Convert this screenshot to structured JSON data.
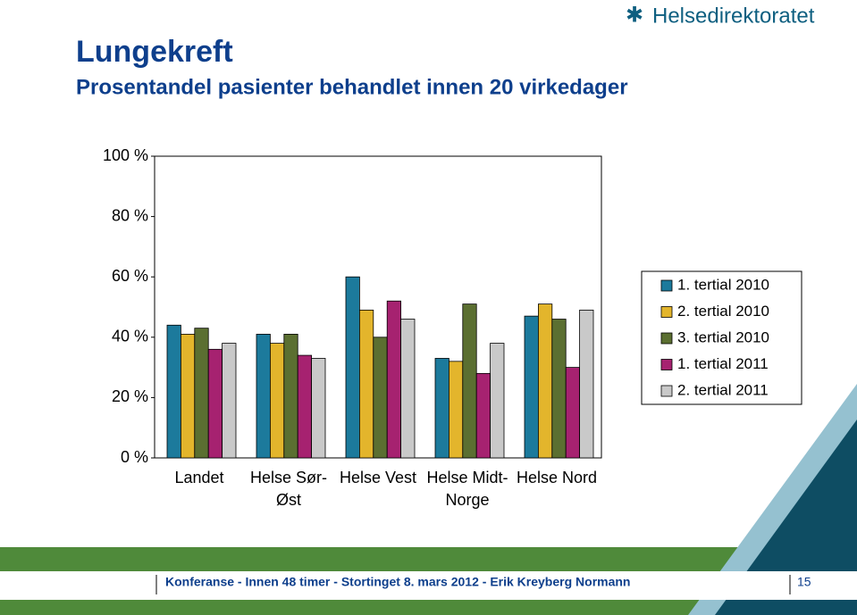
{
  "chart_data": {
    "type": "bar",
    "title": "Lungekreft",
    "subtitle": "Prosentandel pasienter behandlet innen 20 virkedager",
    "categories": [
      "Landet",
      "Helse Sør-Øst",
      "Helse Vest",
      "Helse Midt-Norge",
      "Helse Nord"
    ],
    "series": [
      {
        "name": "1. tertial 2010",
        "color": "#1c7a9c",
        "values": [
          44,
          41,
          60,
          33,
          47
        ]
      },
      {
        "name": "2. tertial 2010",
        "color": "#e3b52c",
        "values": [
          41,
          38,
          49,
          32,
          51
        ]
      },
      {
        "name": "3. tertial 2010",
        "color": "#5b6f31",
        "values": [
          43,
          41,
          40,
          51,
          46
        ]
      },
      {
        "name": "1. tertial 2011",
        "color": "#a62270",
        "values": [
          36,
          34,
          52,
          28,
          30
        ]
      },
      {
        "name": "2. tertial 2011",
        "color": "#c9c9c9",
        "values": [
          38,
          33,
          46,
          38,
          49
        ]
      }
    ],
    "ylim": [
      0,
      100
    ],
    "yticks": [
      {
        "value": 0,
        "label": "0 %"
      },
      {
        "value": 20,
        "label": "20 %"
      },
      {
        "value": 40,
        "label": "40 %"
      },
      {
        "value": 60,
        "label": "60 %"
      },
      {
        "value": 80,
        "label": "80 %"
      },
      {
        "value": 100,
        "label": "100 %"
      }
    ],
    "grid": false,
    "legend": "right"
  },
  "logo": "Helsedirektoratet",
  "footer": {
    "text": "Konferanse - Innen 48 timer - Stortinget 8. mars 2012 - Erik Kreyberg Normann",
    "page": "15"
  }
}
